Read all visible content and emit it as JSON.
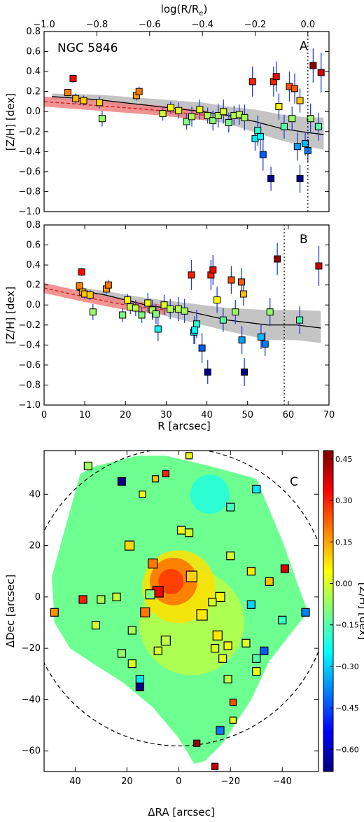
{
  "chart_data": [
    {
      "type": "scatter",
      "panel": "A",
      "galaxy_label": "NGC 5846",
      "top_xlabel": "log(R/R",
      "top_xlabel_sub": "e",
      "top_xlabel_close": ")",
      "top_xticks": [
        "−1.0",
        "−0.8",
        "−0.6",
        "−0.4",
        "−0.2",
        "0.0"
      ],
      "top_xtick_values": [
        -1.0,
        -0.8,
        -0.6,
        -0.4,
        -0.2,
        0.0
      ],
      "ylabel": "[Z/H] [dex]",
      "ylim": [
        -1.0,
        0.8
      ],
      "xlim_log": [
        -1.0,
        0.08
      ],
      "yticks": [
        "−1.0",
        "−0.8",
        "−0.6",
        "−0.4",
        "−0.2",
        "0.0",
        "0.2",
        "0.4",
        "0.6",
        "0.8"
      ],
      "ytick_values": [
        -1.0,
        -0.8,
        -0.6,
        -0.4,
        -0.2,
        0.0,
        0.2,
        0.4,
        0.6,
        0.8
      ],
      "vline_logR": 0.0,
      "points": [
        {
          "x": -0.91,
          "y": 0.19,
          "err": 0.03
        },
        {
          "x": -0.89,
          "y": 0.33,
          "err": 0.04
        },
        {
          "x": -0.88,
          "y": 0.13,
          "err": 0.05
        },
        {
          "x": -0.85,
          "y": 0.11,
          "err": 0.05
        },
        {
          "x": -0.79,
          "y": 0.09,
          "err": 0.06
        },
        {
          "x": -0.78,
          "y": -0.07,
          "err": 0.08
        },
        {
          "x": -0.65,
          "y": 0.16,
          "err": 0.05
        },
        {
          "x": -0.64,
          "y": 0.2,
          "err": 0.05
        },
        {
          "x": -0.55,
          "y": -0.02,
          "err": 0.07
        },
        {
          "x": -0.52,
          "y": 0.04,
          "err": 0.06
        },
        {
          "x": -0.49,
          "y": 0.01,
          "err": 0.08
        },
        {
          "x": -0.46,
          "y": -0.1,
          "err": 0.08
        },
        {
          "x": -0.44,
          "y": -0.05,
          "err": 0.1
        },
        {
          "x": -0.41,
          "y": 0.02,
          "err": 0.1
        },
        {
          "x": -0.38,
          "y": -0.04,
          "err": 0.08
        },
        {
          "x": -0.36,
          "y": -0.09,
          "err": 0.1
        },
        {
          "x": -0.34,
          "y": -0.04,
          "err": 0.12
        },
        {
          "x": -0.32,
          "y": 0.0,
          "err": 0.12
        },
        {
          "x": -0.3,
          "y": -0.11,
          "err": 0.1
        },
        {
          "x": -0.28,
          "y": -0.04,
          "err": 0.1
        },
        {
          "x": -0.26,
          "y": -0.03,
          "err": 0.1
        },
        {
          "x": -0.24,
          "y": -0.06,
          "err": 0.13
        },
        {
          "x": -0.21,
          "y": 0.3,
          "err": 0.15
        },
        {
          "x": -0.2,
          "y": -0.27,
          "err": 0.12
        },
        {
          "x": -0.19,
          "y": -0.19,
          "err": 0.15
        },
        {
          "x": -0.18,
          "y": -0.25,
          "err": 0.14
        },
        {
          "x": -0.17,
          "y": -0.43,
          "err": 0.16
        },
        {
          "x": -0.14,
          "y": -0.67,
          "err": 0.12
        },
        {
          "x": -0.13,
          "y": 0.3,
          "err": 0.15
        },
        {
          "x": -0.12,
          "y": 0.35,
          "err": 0.15
        },
        {
          "x": -0.11,
          "y": 0.05,
          "err": 0.13
        },
        {
          "x": -0.09,
          "y": -0.15,
          "err": 0.12
        },
        {
          "x": -0.07,
          "y": 0.25,
          "err": 0.15
        },
        {
          "x": -0.06,
          "y": -0.07,
          "err": 0.12
        },
        {
          "x": -0.05,
          "y": 0.23,
          "err": 0.15
        },
        {
          "x": -0.04,
          "y": -0.35,
          "err": 0.14
        },
        {
          "x": -0.03,
          "y": 0.11,
          "err": 0.12
        },
        {
          "x": -0.03,
          "y": -0.67,
          "err": 0.14
        },
        {
          "x": -0.01,
          "y": -0.32,
          "err": 0.12
        },
        {
          "x": 0.0,
          "y": -0.39,
          "err": 0.12
        },
        {
          "x": 0.01,
          "y": -0.07,
          "err": 0.15
        },
        {
          "x": 0.02,
          "y": 0.46,
          "err": 0.17
        },
        {
          "x": 0.04,
          "y": -0.15,
          "err": 0.14
        },
        {
          "x": 0.05,
          "y": 0.39,
          "err": 0.2
        }
      ],
      "trend_line": [
        [
          -0.97,
          0.15
        ],
        [
          -0.8,
          0.12
        ],
        [
          -0.6,
          0.06
        ],
        [
          -0.4,
          0.0
        ],
        [
          -0.3,
          -0.04
        ],
        [
          -0.2,
          -0.1
        ],
        [
          -0.1,
          -0.17
        ],
        [
          0.0,
          -0.21
        ],
        [
          0.06,
          -0.23
        ]
      ],
      "band_upper": [
        0.18,
        0.17,
        0.13,
        0.09,
        0.05,
        0.02,
        -0.03,
        -0.06,
        -0.06
      ],
      "band_lower": [
        0.12,
        0.09,
        0.0,
        -0.08,
        -0.12,
        -0.21,
        -0.29,
        -0.35,
        -0.38
      ],
      "red_line": [
        [
          -1.0,
          0.1
        ],
        [
          -0.8,
          0.06
        ],
        [
          -0.6,
          0.02
        ],
        [
          -0.45,
          -0.02
        ],
        [
          -0.38,
          -0.04
        ]
      ],
      "red_halfwidth": 0.05
    },
    {
      "type": "scatter",
      "panel": "B",
      "xlabel": "R [arcsec]",
      "ylabel": "[Z/H] [dex]",
      "xlim": [
        0,
        70
      ],
      "ylim": [
        -1.0,
        0.8
      ],
      "xticks": [
        "0",
        "10",
        "20",
        "30",
        "40",
        "50",
        "60",
        "70"
      ],
      "xtick_values": [
        0,
        10,
        20,
        30,
        40,
        50,
        60,
        70
      ],
      "yticks": [
        "−1.0",
        "−0.8",
        "−0.6",
        "−0.4",
        "−0.2",
        "0.0",
        "0.2",
        "0.4",
        "0.6",
        "0.8"
      ],
      "ytick_values": [
        -1.0,
        -0.8,
        -0.6,
        -0.4,
        -0.2,
        0.0,
        0.2,
        0.4,
        0.6,
        0.8
      ],
      "vline_R": 59,
      "points": [
        {
          "x": 8.7,
          "y": 0.19,
          "err": 0.04
        },
        {
          "x": 9.2,
          "y": 0.33,
          "err": 0.04
        },
        {
          "x": 9.5,
          "y": 0.13,
          "err": 0.05
        },
        {
          "x": 10.0,
          "y": 0.11,
          "err": 0.05
        },
        {
          "x": 11.3,
          "y": 0.1,
          "err": 0.05
        },
        {
          "x": 12.0,
          "y": -0.07,
          "err": 0.08
        },
        {
          "x": 15.3,
          "y": 0.16,
          "err": 0.05
        },
        {
          "x": 15.8,
          "y": 0.2,
          "err": 0.05
        },
        {
          "x": 19.3,
          "y": -0.1,
          "err": 0.07
        },
        {
          "x": 20.5,
          "y": 0.05,
          "err": 0.06
        },
        {
          "x": 21.2,
          "y": -0.02,
          "err": 0.07
        },
        {
          "x": 22.5,
          "y": -0.03,
          "err": 0.08
        },
        {
          "x": 24.0,
          "y": -0.1,
          "err": 0.08
        },
        {
          "x": 25.5,
          "y": 0.02,
          "err": 0.1
        },
        {
          "x": 26.6,
          "y": -0.05,
          "err": 0.1
        },
        {
          "x": 27.5,
          "y": -0.09,
          "err": 0.1
        },
        {
          "x": 28.0,
          "y": -0.24,
          "err": 0.12
        },
        {
          "x": 29.5,
          "y": 0.0,
          "err": 0.1
        },
        {
          "x": 31.0,
          "y": -0.04,
          "err": 0.1
        },
        {
          "x": 33.0,
          "y": -0.04,
          "err": 0.12
        },
        {
          "x": 34.5,
          "y": -0.06,
          "err": 0.12
        },
        {
          "x": 36.2,
          "y": 0.3,
          "err": 0.15
        },
        {
          "x": 36.8,
          "y": -0.27,
          "err": 0.12
        },
        {
          "x": 37.5,
          "y": -0.19,
          "err": 0.14
        },
        {
          "x": 37.0,
          "y": -0.25,
          "err": 0.14
        },
        {
          "x": 38.8,
          "y": -0.43,
          "err": 0.15
        },
        {
          "x": 40.2,
          "y": -0.67,
          "err": 0.12
        },
        {
          "x": 41.0,
          "y": 0.3,
          "err": 0.15
        },
        {
          "x": 41.5,
          "y": 0.35,
          "err": 0.15
        },
        {
          "x": 42.5,
          "y": 0.05,
          "err": 0.13
        },
        {
          "x": 44.0,
          "y": -0.15,
          "err": 0.12
        },
        {
          "x": 46.0,
          "y": 0.25,
          "err": 0.14
        },
        {
          "x": 47.0,
          "y": -0.07,
          "err": 0.12
        },
        {
          "x": 48.5,
          "y": 0.23,
          "err": 0.14
        },
        {
          "x": 48.6,
          "y": -0.35,
          "err": 0.14
        },
        {
          "x": 49.0,
          "y": 0.11,
          "err": 0.12
        },
        {
          "x": 49.2,
          "y": -0.67,
          "err": 0.14
        },
        {
          "x": 53.3,
          "y": -0.32,
          "err": 0.12
        },
        {
          "x": 54.3,
          "y": -0.39,
          "err": 0.12
        },
        {
          "x": 55.5,
          "y": -0.07,
          "err": 0.14
        },
        {
          "x": 57.3,
          "y": 0.46,
          "err": 0.16
        },
        {
          "x": 62.8,
          "y": -0.15,
          "err": 0.14
        },
        {
          "x": 67.5,
          "y": 0.39,
          "err": 0.2
        }
      ],
      "trend_line": [
        [
          8,
          0.15
        ],
        [
          15,
          0.1
        ],
        [
          25,
          0.0
        ],
        [
          35,
          -0.06
        ],
        [
          45,
          -0.15
        ],
        [
          55,
          -0.2
        ],
        [
          62,
          -0.2
        ],
        [
          68,
          -0.23
        ]
      ],
      "band_upper": [
        0.18,
        0.14,
        0.07,
        0.02,
        -0.03,
        -0.05,
        -0.05,
        -0.06
      ],
      "band_lower": [
        0.12,
        0.06,
        -0.06,
        -0.16,
        -0.26,
        -0.35,
        -0.35,
        -0.38
      ],
      "red_line": [
        [
          0,
          0.17
        ],
        [
          10,
          0.08
        ],
        [
          20,
          0.0
        ],
        [
          30,
          -0.05
        ]
      ],
      "red_halfwidth": 0.05
    },
    {
      "type": "heatmap",
      "panel": "C",
      "xlabel": "ΔRA [arcsec]",
      "ylabel": "ΔDec [arcsec]",
      "colorbar_label": "[Z/H] [dex]",
      "xlim": [
        52,
        -54
      ],
      "ylim": [
        -68,
        57
      ],
      "xticks": [
        "40",
        "20",
        "0",
        "−20",
        "−40"
      ],
      "xtick_values": [
        40,
        20,
        0,
        -20,
        -40
      ],
      "yticks": [
        "−60",
        "−40",
        "−20",
        "0",
        "20",
        "40"
      ],
      "ytick_values": [
        -60,
        -40,
        -20,
        0,
        20,
        40
      ],
      "colorbar_ticks": [
        "0.45",
        "0.30",
        "0.15",
        "0.00",
        "−0.15",
        "−0.30",
        "−0.45",
        "−0.60"
      ],
      "colorbar_values": [
        0.45,
        0.3,
        0.15,
        0.0,
        -0.15,
        -0.3,
        -0.45,
        -0.6
      ],
      "crange": [
        -0.68,
        0.48
      ],
      "background_polygon": [
        [
          32,
          51
        ],
        [
          16,
          55
        ],
        [
          5,
          55
        ],
        [
          -12,
          51
        ],
        [
          -30,
          46
        ],
        [
          -40,
          22
        ],
        [
          -47,
          2
        ],
        [
          -50,
          -6
        ],
        [
          -45,
          -12
        ],
        [
          -35,
          -25
        ],
        [
          -28,
          -40
        ],
        [
          -17,
          -57
        ],
        [
          -10,
          -64
        ],
        [
          -6,
          -65
        ],
        [
          0,
          -55
        ],
        [
          10,
          -43
        ],
        [
          22,
          -33
        ],
        [
          33,
          -26
        ],
        [
          42,
          -20
        ],
        [
          48,
          -10
        ],
        [
          49,
          8
        ],
        [
          43,
          30
        ],
        [
          38,
          48
        ]
      ],
      "circle_radius_arcsec": 58,
      "points": [
        {
          "ra": 35,
          "dec": 51,
          "z": -0.06,
          "s": 11
        },
        {
          "ra": 22,
          "dec": 45,
          "z": -0.67,
          "s": 11
        },
        {
          "ra": 14,
          "dec": 40,
          "z": 0.04,
          "s": 9
        },
        {
          "ra": 9,
          "dec": 46,
          "z": 0.11,
          "s": 9
        },
        {
          "ra": 5,
          "dec": 48,
          "z": 0.3,
          "s": 9
        },
        {
          "ra": -4,
          "dec": 55,
          "z": 0.02,
          "s": 9
        },
        {
          "ra": -20,
          "dec": 35,
          "z": -0.17,
          "s": 11
        },
        {
          "ra": -30,
          "dec": 42,
          "z": -0.27,
          "s": 11
        },
        {
          "ra": 19,
          "dec": 20,
          "z": 0.09,
          "s": 13
        },
        {
          "ra": 10,
          "dec": 13,
          "z": 0.2,
          "s": 13
        },
        {
          "ra": -1,
          "dec": 26,
          "z": 0.02,
          "s": 11
        },
        {
          "ra": -4,
          "dec": 25,
          "z": 0.0,
          "s": 11
        },
        {
          "ra": -20,
          "dec": 16,
          "z": 0.0,
          "s": 11
        },
        {
          "ra": 8,
          "dec": 2,
          "z": 0.35,
          "s": 15
        },
        {
          "ra": 11,
          "dec": 1,
          "z": -0.1,
          "s": 13
        },
        {
          "ra": 13,
          "dec": -6,
          "z": 0.2,
          "s": 13
        },
        {
          "ra": -5,
          "dec": 8,
          "z": 0.1,
          "s": 15
        },
        {
          "ra": -9,
          "dec": -7,
          "z": 0.07,
          "s": 15
        },
        {
          "ra": -16,
          "dec": 0,
          "z": 0.05,
          "s": 13
        },
        {
          "ra": -13,
          "dec": -2,
          "z": 0.0,
          "s": 11
        },
        {
          "ra": 37,
          "dec": -1,
          "z": 0.3,
          "s": 11
        },
        {
          "ra": 48,
          "dec": -6,
          "z": 0.17,
          "s": 11
        },
        {
          "ra": 30,
          "dec": -1,
          "z": -0.05,
          "s": 11
        },
        {
          "ra": 24,
          "dec": 0,
          "z": -0.02,
          "s": 11
        },
        {
          "ra": 32,
          "dec": -11,
          "z": -0.01,
          "s": 11
        },
        {
          "ra": 18,
          "dec": -13,
          "z": -0.05,
          "s": 11
        },
        {
          "ra": 22,
          "dec": -22,
          "z": -0.08,
          "s": 11
        },
        {
          "ra": 18,
          "dec": -26,
          "z": 0.0,
          "s": 11
        },
        {
          "ra": 5,
          "dec": -17,
          "z": -0.03,
          "s": 13
        },
        {
          "ra": 8,
          "dec": -21,
          "z": 0.0,
          "s": 11
        },
        {
          "ra": 15,
          "dec": -32,
          "z": -0.27,
          "s": 11
        },
        {
          "ra": 15,
          "dec": -35,
          "z": -0.67,
          "s": 11
        },
        {
          "ra": -28,
          "dec": 10,
          "z": 0.07,
          "s": 11
        },
        {
          "ra": -35,
          "dec": 6,
          "z": 0.12,
          "s": 11
        },
        {
          "ra": -41,
          "dec": 11,
          "z": 0.38,
          "s": 11
        },
        {
          "ra": -28,
          "dec": -3,
          "z": -0.3,
          "s": 11
        },
        {
          "ra": -40,
          "dec": -9,
          "z": -0.18,
          "s": 11
        },
        {
          "ra": -49,
          "dec": -6,
          "z": -0.39,
          "s": 11
        },
        {
          "ra": -15,
          "dec": -15,
          "z": 0.07,
          "s": 13
        },
        {
          "ra": -19,
          "dec": -19,
          "z": 0.05,
          "s": 11
        },
        {
          "ra": -14,
          "dec": -20,
          "z": 0.0,
          "s": 11
        },
        {
          "ra": -17,
          "dec": -24,
          "z": 0.02,
          "s": 11
        },
        {
          "ra": -26,
          "dec": -18,
          "z": 0.0,
          "s": 11
        },
        {
          "ra": -33,
          "dec": -21,
          "z": -0.43,
          "s": 11
        },
        {
          "ra": -30,
          "dec": -24,
          "z": -0.15,
          "s": 11
        },
        {
          "ra": -30,
          "dec": -29,
          "z": 0.02,
          "s": 11
        },
        {
          "ra": -19,
          "dec": -32,
          "z": -0.04,
          "s": 11
        },
        {
          "ra": -21,
          "dec": -41,
          "z": 0.25,
          "s": 9
        },
        {
          "ra": -21,
          "dec": -48,
          "z": 0.02,
          "s": 9
        },
        {
          "ra": -16,
          "dec": -52,
          "z": -0.4,
          "s": 11
        },
        {
          "ra": -7,
          "dec": -57,
          "z": 0.45,
          "s": 9
        },
        {
          "ra": -14,
          "dec": -66,
          "z": 0.4,
          "s": 9
        }
      ]
    }
  ]
}
